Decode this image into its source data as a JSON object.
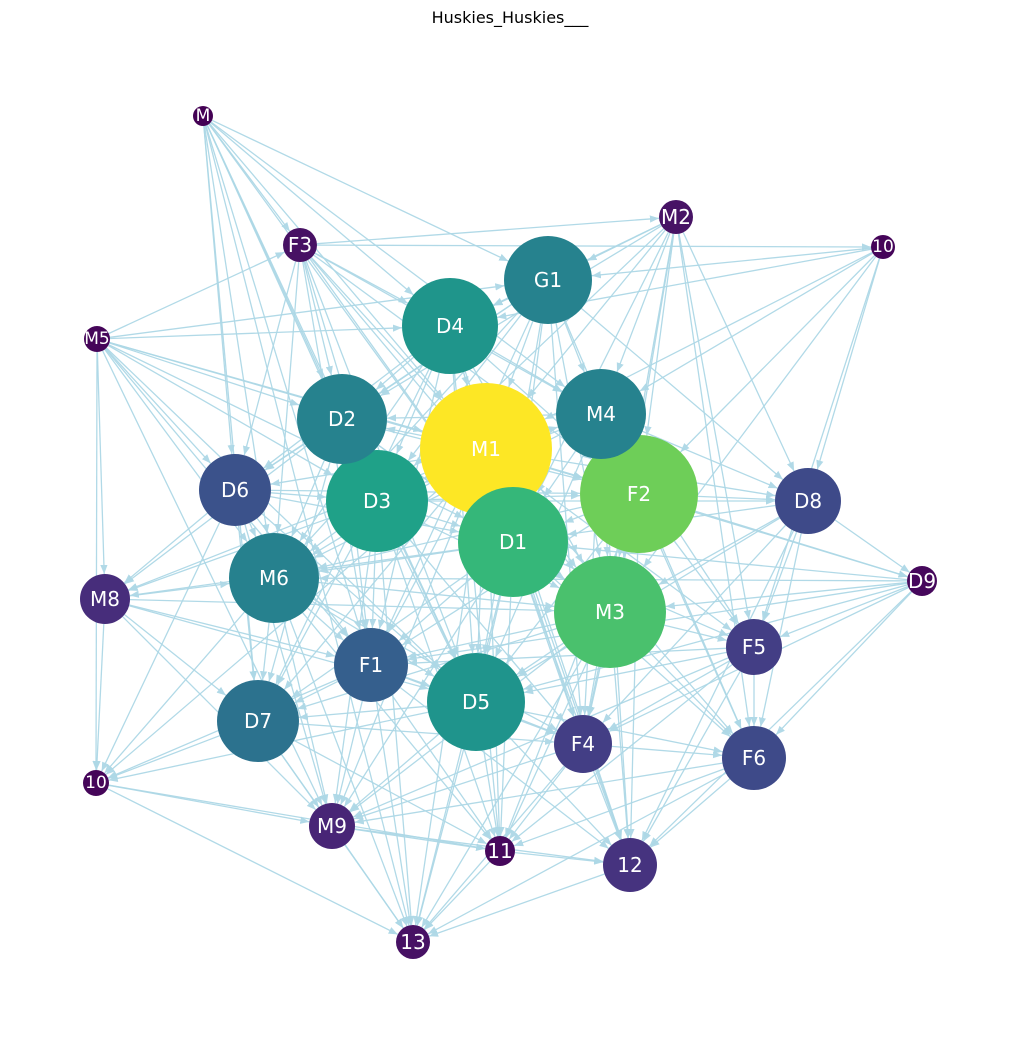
{
  "title": "Huskies_Huskies___",
  "edge_color": "#add8e6",
  "label_color": "#ffffff",
  "nodes": [
    {
      "id": "M1",
      "label": "M1",
      "color": "#fde725",
      "size": 10
    },
    {
      "id": "F2",
      "label": "F2",
      "color": "#6ece58",
      "size": 9
    },
    {
      "id": "M3",
      "label": "M3",
      "color": "#4ac16d",
      "size": 8
    },
    {
      "id": "D1",
      "label": "D1",
      "color": "#35b779",
      "size": 8
    },
    {
      "id": "D3",
      "label": "D3",
      "color": "#1fa188",
      "size": 7
    },
    {
      "id": "D4",
      "label": "D4",
      "color": "#1f958b",
      "size": 7
    },
    {
      "id": "D5",
      "label": "D5",
      "color": "#1f948c",
      "size": 7
    },
    {
      "id": "G1",
      "label": "G1",
      "color": "#26828e",
      "size": 6
    },
    {
      "id": "M4",
      "label": "M4",
      "color": "#26828e",
      "size": 6
    },
    {
      "id": "D2",
      "label": "D2",
      "color": "#26828e",
      "size": 6
    },
    {
      "id": "M6",
      "label": "M6",
      "color": "#26818e",
      "size": 6
    },
    {
      "id": "D7",
      "label": "D7",
      "color": "#2c728e",
      "size": 6
    },
    {
      "id": "F1",
      "label": "F1",
      "color": "#355f8d",
      "size": 5
    },
    {
      "id": "D6",
      "label": "D6",
      "color": "#3b528b",
      "size": 5
    },
    {
      "id": "D8",
      "label": "D8",
      "color": "#3e4a89",
      "size": 5
    },
    {
      "id": "F6",
      "label": "F6",
      "color": "#3e4a89",
      "size": 5
    },
    {
      "id": "F5",
      "label": "F5",
      "color": "#433e85",
      "size": 4
    },
    {
      "id": "F4",
      "label": "F4",
      "color": "#433e85",
      "size": 4
    },
    {
      "id": "N12",
      "label": "12",
      "color": "#46337f",
      "size": 4
    },
    {
      "id": "M8",
      "label": "M8",
      "color": "#472d7b",
      "size": 4
    },
    {
      "id": "M9",
      "label": "M9",
      "color": "#482576",
      "size": 3
    },
    {
      "id": "M2",
      "label": "M2",
      "color": "#471365",
      "size": 2
    },
    {
      "id": "F3",
      "label": "F3",
      "color": "#471164",
      "size": 2
    },
    {
      "id": "N13",
      "label": "13",
      "color": "#471164",
      "size": 2
    },
    {
      "id": "N11",
      "label": "11",
      "color": "#46085c",
      "size": 2
    },
    {
      "id": "D9",
      "label": "D9",
      "color": "#46085c",
      "size": 2
    },
    {
      "id": "M5",
      "label": "M5",
      "color": "#450559",
      "size": 1
    },
    {
      "id": "N10a",
      "label": "10",
      "color": "#450559",
      "size": 1
    },
    {
      "id": "N10b",
      "label": "10",
      "color": "#450559",
      "size": 1
    },
    {
      "id": "Mtop",
      "label": "M",
      "color": "#440154",
      "size": 1
    }
  ],
  "edges": [
    [
      "Mtop",
      "F3"
    ],
    [
      "Mtop",
      "D4"
    ],
    [
      "Mtop",
      "D2"
    ],
    [
      "Mtop",
      "D3"
    ],
    [
      "Mtop",
      "M1"
    ],
    [
      "Mtop",
      "G1"
    ],
    [
      "Mtop",
      "D6"
    ],
    [
      "Mtop",
      "M6"
    ],
    [
      "Mtop",
      "F1"
    ],
    [
      "Mtop",
      "D5"
    ],
    [
      "Mtop",
      "D1"
    ],
    [
      "Mtop",
      "M4"
    ],
    [
      "Mtop",
      "D7"
    ],
    [
      "Mtop",
      "N13"
    ],
    [
      "M5",
      "D4"
    ],
    [
      "M5",
      "D2"
    ],
    [
      "M5",
      "D3"
    ],
    [
      "M5",
      "M1"
    ],
    [
      "M5",
      "F3"
    ],
    [
      "M5",
      "D6"
    ],
    [
      "M5",
      "M8"
    ],
    [
      "M5",
      "F1"
    ],
    [
      "M5",
      "D1"
    ],
    [
      "M5",
      "F2"
    ],
    [
      "M5",
      "N10b"
    ],
    [
      "M5",
      "D5"
    ],
    [
      "M5",
      "M6"
    ],
    [
      "M5",
      "G1"
    ],
    [
      "M5",
      "M9"
    ],
    [
      "F3",
      "D4"
    ],
    [
      "F3",
      "D2"
    ],
    [
      "F3",
      "M1"
    ],
    [
      "F3",
      "D3"
    ],
    [
      "F3",
      "D6"
    ],
    [
      "F3",
      "D1"
    ],
    [
      "F3",
      "M4"
    ],
    [
      "F3",
      "F2"
    ],
    [
      "F3",
      "M6"
    ],
    [
      "F3",
      "D5"
    ],
    [
      "F3",
      "M2"
    ],
    [
      "F3",
      "N10a"
    ],
    [
      "F3",
      "F1"
    ],
    [
      "F3",
      "M3"
    ],
    [
      "M2",
      "G1"
    ],
    [
      "M2",
      "D4"
    ],
    [
      "M2",
      "M1"
    ],
    [
      "M2",
      "M4"
    ],
    [
      "M2",
      "F2"
    ],
    [
      "M2",
      "D1"
    ],
    [
      "M2",
      "M3"
    ],
    [
      "M2",
      "F5"
    ],
    [
      "M2",
      "F6"
    ],
    [
      "M2",
      "D3"
    ],
    [
      "M2",
      "D2"
    ],
    [
      "M2",
      "F4"
    ],
    [
      "M2",
      "D8"
    ],
    [
      "N10a",
      "G1"
    ],
    [
      "N10a",
      "M4"
    ],
    [
      "N10a",
      "F2"
    ],
    [
      "N10a",
      "D8"
    ],
    [
      "N10a",
      "M1"
    ],
    [
      "N10a",
      "D4"
    ],
    [
      "N10a",
      "F5"
    ],
    [
      "N10a",
      "M3"
    ],
    [
      "G1",
      "D4"
    ],
    [
      "G1",
      "M1"
    ],
    [
      "G1",
      "D2"
    ],
    [
      "G1",
      "D3"
    ],
    [
      "G1",
      "M4"
    ],
    [
      "G1",
      "F2"
    ],
    [
      "G1",
      "D1"
    ],
    [
      "G1",
      "M6"
    ],
    [
      "G1",
      "D6"
    ],
    [
      "G1",
      "F1"
    ],
    [
      "G1",
      "D5"
    ],
    [
      "G1",
      "M3"
    ],
    [
      "G1",
      "D8"
    ],
    [
      "G1",
      "F4"
    ],
    [
      "D4",
      "M1"
    ],
    [
      "D4",
      "D2"
    ],
    [
      "D4",
      "D3"
    ],
    [
      "D4",
      "M4"
    ],
    [
      "D4",
      "D6"
    ],
    [
      "D4",
      "D1"
    ],
    [
      "D4",
      "M6"
    ],
    [
      "D4",
      "F1"
    ],
    [
      "D4",
      "F2"
    ],
    [
      "D4",
      "D5"
    ],
    [
      "D4",
      "M3"
    ],
    [
      "D4",
      "D7"
    ],
    [
      "D4",
      "N11"
    ],
    [
      "D4",
      "N12"
    ],
    [
      "M1",
      "D2"
    ],
    [
      "M1",
      "D3"
    ],
    [
      "M1",
      "M4"
    ],
    [
      "M1",
      "F2"
    ],
    [
      "M1",
      "D1"
    ],
    [
      "M1",
      "D6"
    ],
    [
      "M1",
      "M6"
    ],
    [
      "M1",
      "F1"
    ],
    [
      "M1",
      "D5"
    ],
    [
      "M1",
      "M3"
    ],
    [
      "M1",
      "D7"
    ],
    [
      "M1",
      "F4"
    ],
    [
      "M1",
      "D8"
    ],
    [
      "M1",
      "F5"
    ],
    [
      "M1",
      "F6"
    ],
    [
      "M1",
      "M8"
    ],
    [
      "M1",
      "M9"
    ],
    [
      "M1",
      "N11"
    ],
    [
      "M1",
      "N12"
    ],
    [
      "M1",
      "N13"
    ],
    [
      "M1",
      "D9"
    ],
    [
      "M1",
      "N10b"
    ],
    [
      "M4",
      "F2"
    ],
    [
      "M4",
      "D1"
    ],
    [
      "M4",
      "D3"
    ],
    [
      "M4",
      "M3"
    ],
    [
      "M4",
      "D8"
    ],
    [
      "M4",
      "D5"
    ],
    [
      "M4",
      "F4"
    ],
    [
      "M4",
      "F5"
    ],
    [
      "M4",
      "M6"
    ],
    [
      "M4",
      "D2"
    ],
    [
      "M4",
      "F6"
    ],
    [
      "M4",
      "N12"
    ],
    [
      "D2",
      "D3"
    ],
    [
      "D2",
      "D6"
    ],
    [
      "D2",
      "D1"
    ],
    [
      "D2",
      "M6"
    ],
    [
      "D2",
      "F1"
    ],
    [
      "D2",
      "D5"
    ],
    [
      "D2",
      "F2"
    ],
    [
      "D2",
      "D7"
    ],
    [
      "D2",
      "M3"
    ],
    [
      "D2",
      "M8"
    ],
    [
      "D6",
      "D3"
    ],
    [
      "D6",
      "M6"
    ],
    [
      "D6",
      "M8"
    ],
    [
      "D6",
      "D7"
    ],
    [
      "D6",
      "F1"
    ],
    [
      "D6",
      "D1"
    ],
    [
      "D6",
      "D5"
    ],
    [
      "D6",
      "N10b"
    ],
    [
      "D6",
      "M9"
    ],
    [
      "D6",
      "F2"
    ],
    [
      "D3",
      "D1"
    ],
    [
      "D3",
      "F2"
    ],
    [
      "D3",
      "M6"
    ],
    [
      "D3",
      "F1"
    ],
    [
      "D3",
      "D5"
    ],
    [
      "D3",
      "M3"
    ],
    [
      "D3",
      "D7"
    ],
    [
      "D3",
      "F4"
    ],
    [
      "D3",
      "M9"
    ],
    [
      "D3",
      "N11"
    ],
    [
      "D3",
      "N13"
    ],
    [
      "D3",
      "M8"
    ],
    [
      "D3",
      "D8"
    ],
    [
      "F2",
      "D1"
    ],
    [
      "F2",
      "M3"
    ],
    [
      "F2",
      "D8"
    ],
    [
      "F2",
      "F5"
    ],
    [
      "F2",
      "F6"
    ],
    [
      "F2",
      "F4"
    ],
    [
      "F2",
      "D9"
    ],
    [
      "F2",
      "D5"
    ],
    [
      "F2",
      "M6"
    ],
    [
      "F2",
      "F1"
    ],
    [
      "F2",
      "N12"
    ],
    [
      "F2",
      "N11"
    ],
    [
      "D8",
      "M3"
    ],
    [
      "D8",
      "F5"
    ],
    [
      "D8",
      "F6"
    ],
    [
      "D8",
      "D9"
    ],
    [
      "D8",
      "D1"
    ],
    [
      "D8",
      "F4"
    ],
    [
      "D8",
      "N12"
    ],
    [
      "D8",
      "D5"
    ],
    [
      "D9",
      "M3"
    ],
    [
      "D9",
      "F5"
    ],
    [
      "D9",
      "F6"
    ],
    [
      "D9",
      "D1"
    ],
    [
      "D9",
      "D5"
    ],
    [
      "D9",
      "F4"
    ],
    [
      "D9",
      "N12"
    ],
    [
      "D9",
      "M6"
    ],
    [
      "D9",
      "F1"
    ],
    [
      "D1",
      "M3"
    ],
    [
      "D1",
      "D5"
    ],
    [
      "D1",
      "M6"
    ],
    [
      "D1",
      "F1"
    ],
    [
      "D1",
      "F4"
    ],
    [
      "D1",
      "D7"
    ],
    [
      "D1",
      "F5"
    ],
    [
      "D1",
      "F6"
    ],
    [
      "D1",
      "N11"
    ],
    [
      "D1",
      "N12"
    ],
    [
      "D1",
      "N13"
    ],
    [
      "D1",
      "M9"
    ],
    [
      "D1",
      "M8"
    ],
    [
      "M8",
      "M6"
    ],
    [
      "M8",
      "D7"
    ],
    [
      "M8",
      "N10b"
    ],
    [
      "M8",
      "F1"
    ],
    [
      "M8",
      "D5"
    ],
    [
      "M8",
      "M9"
    ],
    [
      "M8",
      "M3"
    ],
    [
      "M6",
      "F1"
    ],
    [
      "M6",
      "D5"
    ],
    [
      "M6",
      "D7"
    ],
    [
      "M6",
      "M3"
    ],
    [
      "M6",
      "N10b"
    ],
    [
      "M6",
      "M9"
    ],
    [
      "M6",
      "N11"
    ],
    [
      "M6",
      "N13"
    ],
    [
      "M6",
      "F4"
    ],
    [
      "M3",
      "D5"
    ],
    [
      "M3",
      "F4"
    ],
    [
      "M3",
      "F5"
    ],
    [
      "M3",
      "F6"
    ],
    [
      "M3",
      "N12"
    ],
    [
      "M3",
      "N11"
    ],
    [
      "M3",
      "F1"
    ],
    [
      "M3",
      "D7"
    ],
    [
      "M3",
      "M9"
    ],
    [
      "M3",
      "N13"
    ],
    [
      "F5",
      "F6"
    ],
    [
      "F5",
      "F4"
    ],
    [
      "F5",
      "D5"
    ],
    [
      "F5",
      "N12"
    ],
    [
      "F5",
      "N11"
    ],
    [
      "F5",
      "F1"
    ],
    [
      "F5",
      "M9"
    ],
    [
      "F1",
      "D5"
    ],
    [
      "F1",
      "D7"
    ],
    [
      "F1",
      "M9"
    ],
    [
      "F1",
      "N11"
    ],
    [
      "F1",
      "N13"
    ],
    [
      "F1",
      "N10b"
    ],
    [
      "F1",
      "F4"
    ],
    [
      "F1",
      "N12"
    ],
    [
      "D5",
      "F4"
    ],
    [
      "D5",
      "D7"
    ],
    [
      "D5",
      "M9"
    ],
    [
      "D5",
      "N11"
    ],
    [
      "D5",
      "N12"
    ],
    [
      "D5",
      "N13"
    ],
    [
      "D5",
      "N10b"
    ],
    [
      "D5",
      "F6"
    ],
    [
      "D7",
      "N10b"
    ],
    [
      "D7",
      "M9"
    ],
    [
      "D7",
      "N13"
    ],
    [
      "D7",
      "N11"
    ],
    [
      "D7",
      "F4"
    ],
    [
      "F4",
      "F6"
    ],
    [
      "F4",
      "N12"
    ],
    [
      "F4",
      "N11"
    ],
    [
      "F4",
      "N13"
    ],
    [
      "F4",
      "M9"
    ],
    [
      "F6",
      "N12"
    ],
    [
      "F6",
      "N11"
    ],
    [
      "F6",
      "N13"
    ],
    [
      "F6",
      "M9"
    ],
    [
      "N10b",
      "M9"
    ],
    [
      "N10b",
      "N11"
    ],
    [
      "N10b",
      "N13"
    ],
    [
      "M9",
      "N11"
    ],
    [
      "M9",
      "N13"
    ],
    [
      "M9",
      "N12"
    ],
    [
      "N11",
      "N12"
    ],
    [
      "N11",
      "N13"
    ],
    [
      "N12",
      "N13"
    ]
  ]
}
